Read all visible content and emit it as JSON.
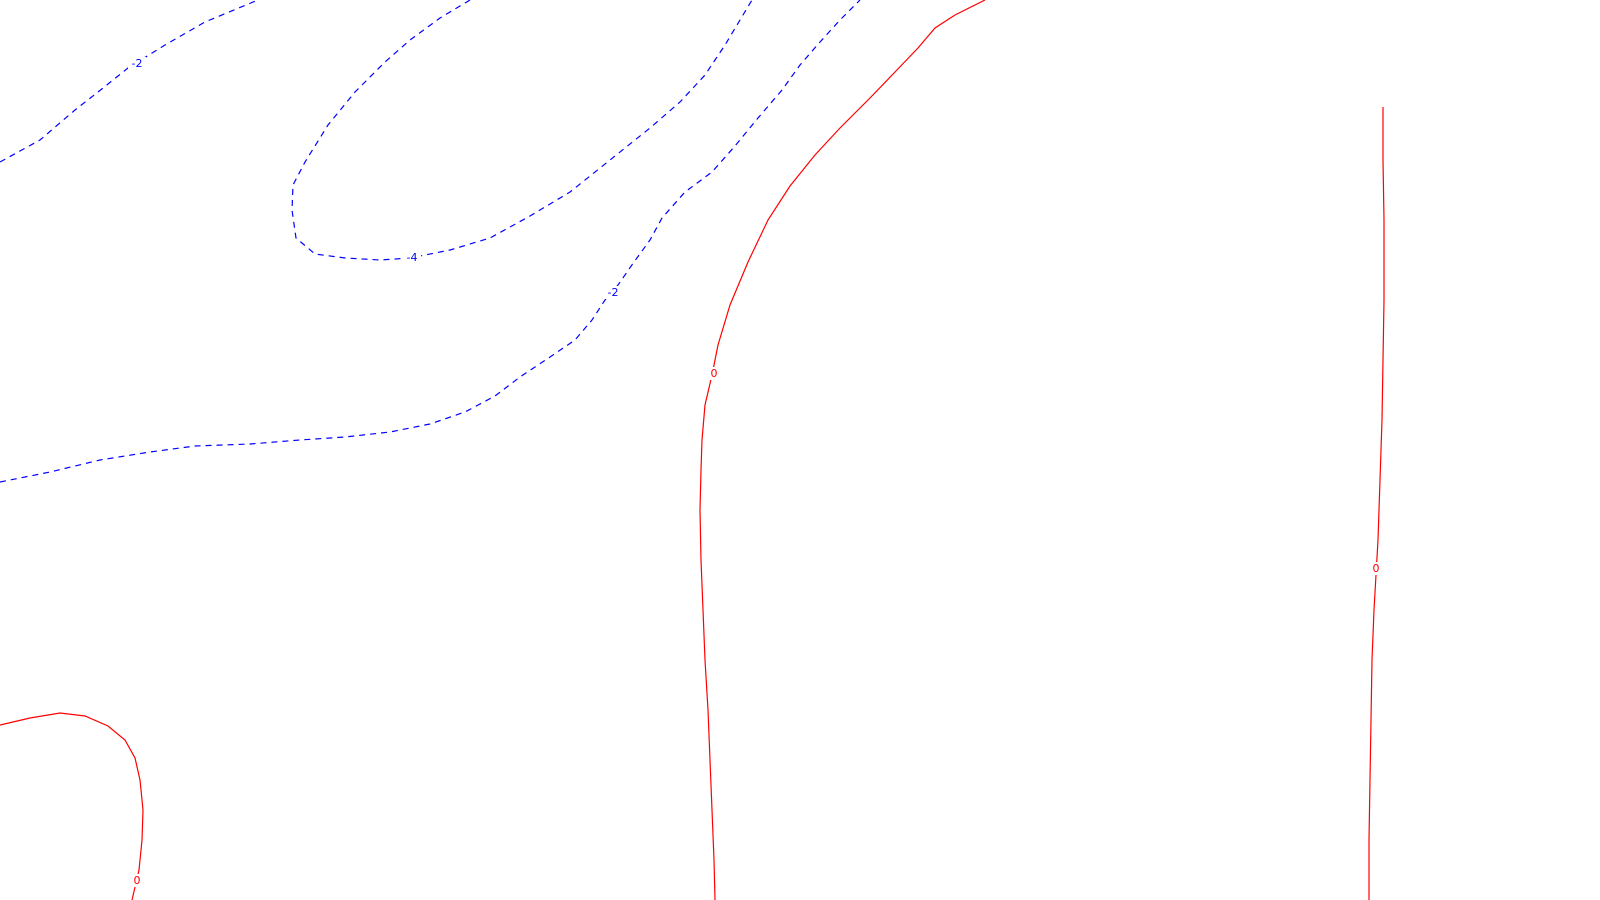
{
  "chart_data": {
    "type": "contour",
    "colors": {
      "negative": "#0000ff",
      "zero": "#ff0000",
      "background": "#ffffff"
    },
    "contours": [
      {
        "level": "-2",
        "style": "dashed",
        "color": "#0000ff",
        "labels": [
          "-2"
        ]
      },
      {
        "level": "-4",
        "style": "dashed",
        "color": "#0000ff",
        "labels": [
          "-4"
        ]
      },
      {
        "level": "-2",
        "style": "dashed",
        "color": "#0000ff",
        "labels": [
          "-2"
        ]
      },
      {
        "level": "0",
        "style": "solid",
        "color": "#ff0000",
        "labels": [
          "0"
        ]
      },
      {
        "level": "0",
        "style": "solid",
        "color": "#ff0000",
        "labels": [
          "0"
        ]
      },
      {
        "level": "0",
        "style": "solid",
        "color": "#ff0000",
        "labels": [
          "0"
        ]
      }
    ]
  }
}
